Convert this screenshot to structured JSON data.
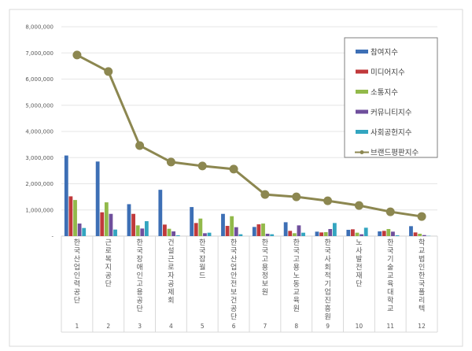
{
  "chart_data": {
    "type": "bar",
    "title": "",
    "xlabel": "",
    "ylabel": "",
    "ylim": [
      0,
      8000000
    ],
    "yticks": [
      "-",
      "1,000,000",
      "2,000,000",
      "3,000,000",
      "4,000,000",
      "5,000,000",
      "6,000,000",
      "7,000,000",
      "8,000,000"
    ],
    "grid": true,
    "legend_position": "top-right",
    "ranks": [
      "1",
      "2",
      "3",
      "4",
      "5",
      "6",
      "7",
      "8",
      "9",
      "10",
      "11",
      "12"
    ],
    "categories": [
      "한국산업인력공단",
      "근로복지공단",
      "한국장애인고용공단",
      "건설근로자공제회",
      "한국잡월드",
      "한국산업안전보건공단",
      "한국고용정보원",
      "한국고용노동교육원",
      "한국사회적기업진흥원",
      "노사발전재단",
      "한국기술교육대학교",
      "학교법인한국폴리텍"
    ],
    "series": [
      {
        "name": "참여지수",
        "type": "bar",
        "color": "#3d6fb5",
        "values": [
          3080000,
          2850000,
          1220000,
          1770000,
          1110000,
          850000,
          350000,
          530000,
          170000,
          240000,
          180000,
          380000
        ]
      },
      {
        "name": "미디어지수",
        "type": "bar",
        "color": "#c0393b",
        "values": [
          1520000,
          910000,
          850000,
          440000,
          500000,
          390000,
          450000,
          200000,
          140000,
          260000,
          200000,
          140000
        ]
      },
      {
        "name": "소통지수",
        "type": "bar",
        "color": "#92b94a",
        "values": [
          1380000,
          1290000,
          410000,
          280000,
          670000,
          760000,
          480000,
          110000,
          150000,
          130000,
          270000,
          90000
        ]
      },
      {
        "name": "커뮤니티지수",
        "type": "bar",
        "color": "#6f4f9c",
        "values": [
          480000,
          850000,
          290000,
          180000,
          110000,
          340000,
          90000,
          410000,
          270000,
          70000,
          170000,
          40000
        ]
      },
      {
        "name": "사회공헌지수",
        "type": "bar",
        "color": "#33a5c0",
        "values": [
          310000,
          250000,
          570000,
          30000,
          130000,
          70000,
          70000,
          130000,
          500000,
          320000,
          30000,
          10000
        ]
      },
      {
        "name": "브랜드평판지수",
        "type": "line",
        "color": "#8c8750",
        "values": [
          6920000,
          6290000,
          3460000,
          2830000,
          2680000,
          2560000,
          1590000,
          1500000,
          1350000,
          1170000,
          930000,
          750000
        ]
      }
    ]
  }
}
